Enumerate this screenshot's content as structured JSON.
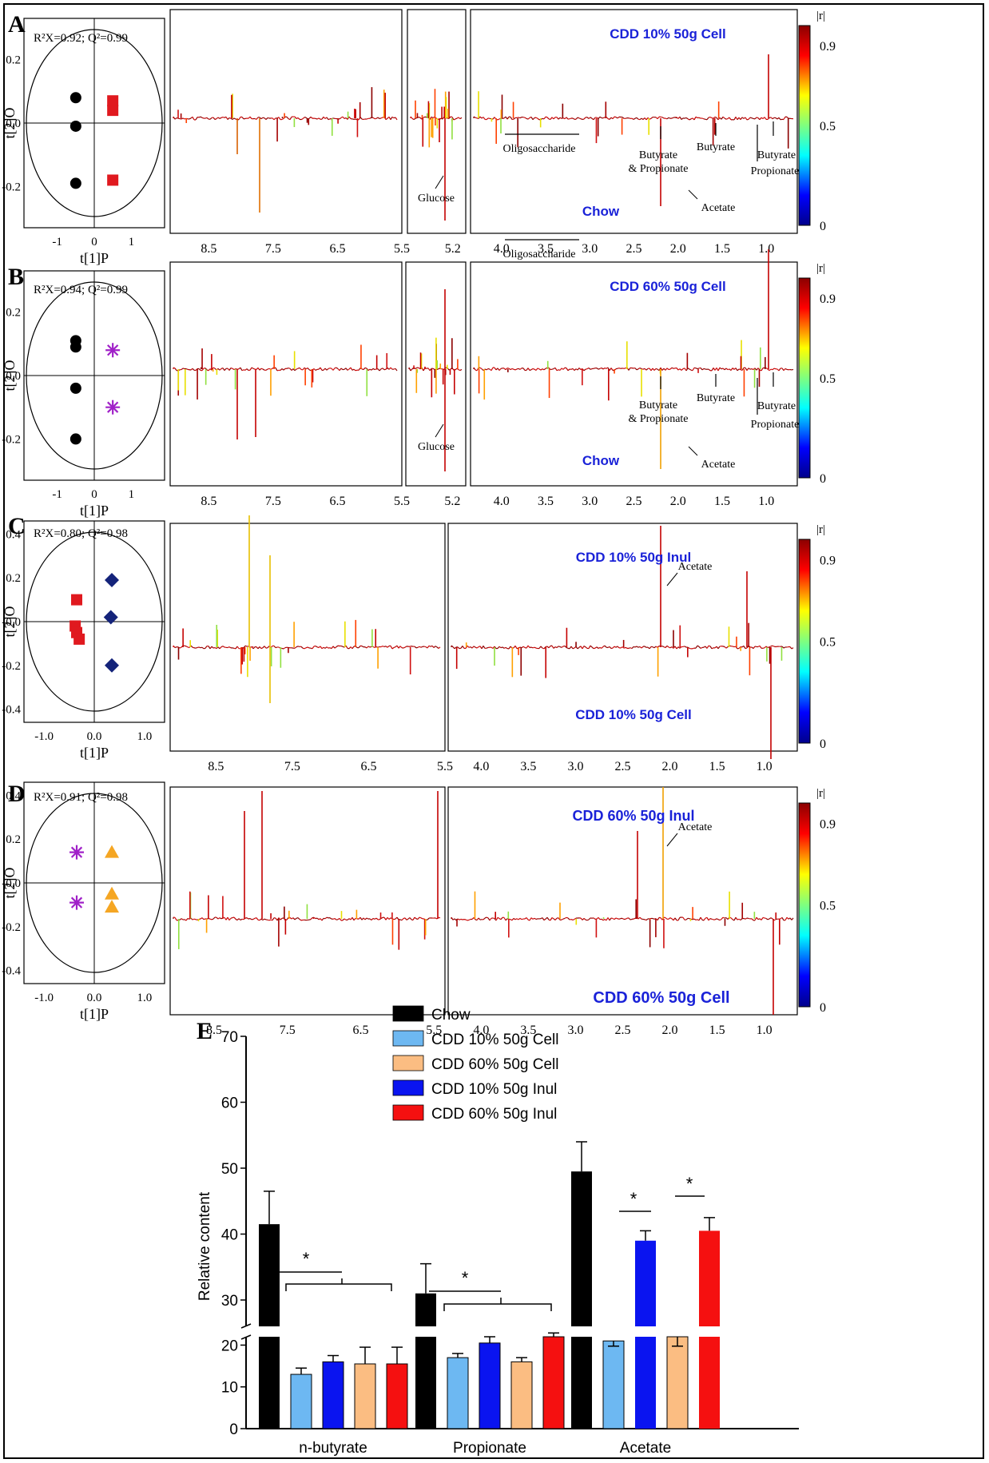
{
  "panels": [
    {
      "letter": "A",
      "stats": "R²X=0.92; Q²=0.99",
      "score_plot": {
        "ylabel": "t[2]O",
        "xlabel": "t[1]P",
        "xticks": [
          "-1",
          "0",
          "1"
        ],
        "yticks": [
          "0.2",
          "0.0",
          "-0.2"
        ],
        "groups": [
          {
            "shape": "circle",
            "color": "#000000",
            "points": [
              [
                -0.5,
                0.08
              ],
              [
                -0.5,
                -0.01
              ],
              [
                -0.5,
                -0.19
              ]
            ]
          },
          {
            "shape": "square",
            "color": "#e0191f",
            "points": [
              [
                0.5,
                0.07
              ],
              [
                0.5,
                0.04
              ],
              [
                0.5,
                -0.18
              ]
            ]
          }
        ]
      },
      "top_label": "CDD 10% 50g Cell",
      "bottom_label": "Chow",
      "xticks": [
        "8.5",
        "7.5",
        "6.5",
        "5.5",
        "5.2",
        "4.0",
        "3.5",
        "3.0",
        "2.5",
        "2.0",
        "1.5",
        "1.0"
      ],
      "annotations": [
        "Oligosaccharide",
        "Glucose",
        "Butyrate\n& Propionate",
        "Acetate",
        "Butyrate",
        "Propionate",
        "Butyrate"
      ]
    },
    {
      "letter": "B",
      "stats": "R²X=0.94; Q²=0.99",
      "score_plot": {
        "ylabel": "t[2]O",
        "xlabel": "t[1]P",
        "xticks": [
          "-1",
          "0",
          "1"
        ],
        "yticks": [
          "0.2",
          "0.0",
          "-0.2"
        ],
        "groups": [
          {
            "shape": "circle",
            "color": "#000000",
            "points": [
              [
                -0.5,
                0.11
              ],
              [
                -0.5,
                0.09
              ],
              [
                -0.5,
                -0.04
              ],
              [
                -0.5,
                -0.2
              ]
            ]
          },
          {
            "shape": "star",
            "color": "#a020c8",
            "points": [
              [
                0.5,
                0.08
              ],
              [
                0.5,
                -0.1
              ]
            ]
          }
        ]
      },
      "top_label": "CDD 60% 50g Cell",
      "bottom_label": "Chow",
      "xticks": [
        "8.5",
        "7.5",
        "6.5",
        "5.5",
        "5.2",
        "4.0",
        "3.5",
        "3.0",
        "2.5",
        "2.0",
        "1.5",
        "1.0"
      ],
      "annotations": [
        "Oligosaccharide",
        "Glucose",
        "Butyrate\n& Propionate",
        "Acetate",
        "Butyrate",
        "Propionate",
        "Butyrate"
      ]
    },
    {
      "letter": "C",
      "stats": "R²X=0.80; Q²=0.98",
      "score_plot": {
        "ylabel": "t[2]O",
        "xlabel": "t[1]P",
        "xticks": [
          "-1.0",
          "0.0",
          "1.0"
        ],
        "yticks": [
          "0.4",
          "0.2",
          "-0.0",
          "-0.2",
          "-0.4"
        ],
        "groups": [
          {
            "shape": "square",
            "color": "#e0191f",
            "points": [
              [
                -0.35,
                0.1
              ],
              [
                -0.38,
                -0.02
              ],
              [
                -0.35,
                -0.05
              ],
              [
                -0.3,
                -0.08
              ]
            ]
          },
          {
            "shape": "diamond",
            "color": "#14237a",
            "points": [
              [
                0.35,
                0.19
              ],
              [
                0.33,
                0.02
              ],
              [
                0.35,
                -0.2
              ]
            ]
          }
        ]
      },
      "top_label": "CDD 10% 50g Inul",
      "bottom_label": "CDD 10% 50g Cell",
      "xticks": [
        "8.5",
        "7.5",
        "6.5",
        "5.5",
        "4.0",
        "3.5",
        "3.0",
        "2.5",
        "2.0",
        "1.5",
        "1.0"
      ],
      "annotations": [
        "Acetate"
      ]
    },
    {
      "letter": "D",
      "stats": "R²X=0.91; Q²=0.98",
      "score_plot": {
        "ylabel": "t[2]O",
        "xlabel": "t[1]P",
        "xticks": [
          "-1.0",
          "0.0",
          "1.0"
        ],
        "yticks": [
          "0.4",
          "0.2",
          "-0.0",
          "-0.2",
          "-0.4"
        ],
        "groups": [
          {
            "shape": "star",
            "color": "#a020c8",
            "points": [
              [
                -0.35,
                0.14
              ],
              [
                -0.35,
                -0.09
              ]
            ]
          },
          {
            "shape": "triangle",
            "color": "#f5a623",
            "points": [
              [
                0.35,
                0.14
              ],
              [
                0.35,
                -0.05
              ],
              [
                0.35,
                -0.11
              ]
            ]
          }
        ]
      },
      "top_label": "CDD 60% 50g Inul",
      "bottom_label": "CDD 60% 50g Cell",
      "xticks": [
        "8.5",
        "7.5",
        "6.5",
        "5.5",
        "4.0",
        "3.5",
        "3.0",
        "2.5",
        "2.0",
        "1.5",
        "1.0"
      ],
      "annotations": [
        "Acetate"
      ]
    }
  ],
  "colorbar": {
    "title": "|r|",
    "ticks": [
      "0.9",
      "0.5",
      "0"
    ]
  },
  "chart_data": {
    "type": "bar",
    "panel_letter": "E",
    "ylabel": "Relative content",
    "yticks_upper": [
      "30",
      "40",
      "50",
      "60",
      "70"
    ],
    "yticks_lower": [
      "0",
      "10",
      "20"
    ],
    "ylim": [
      0,
      70
    ],
    "axis_break": [
      22,
      26
    ],
    "categories": [
      "n-butyrate",
      "Propionate",
      "Acetate"
    ],
    "series": [
      {
        "name": "Chow",
        "color": "#000000",
        "values": [
          41.5,
          31,
          49.5
        ],
        "errors": [
          5,
          4.5,
          4.5
        ]
      },
      {
        "name": "CDD 10% 50g Cell",
        "color": "#6db8f2",
        "values": [
          13,
          17,
          21
        ],
        "errors": [
          1.5,
          1,
          2
        ]
      },
      {
        "name": "CDD 10% 50g Inul",
        "color": "#0a14f0",
        "values": [
          16,
          20.5,
          39
        ],
        "errors": [
          1.5,
          1.5,
          1.5
        ]
      },
      {
        "name": "CDD 60% 50g Cell",
        "color": "#fbbd82",
        "values": [
          15.5,
          16,
          22
        ],
        "errors": [
          4,
          1,
          1
        ]
      },
      {
        "name": "CDD 60% 50g Inul",
        "color": "#f51010",
        "values": [
          15.5,
          22,
          40.5
        ],
        "errors": [
          4,
          3,
          2
        ]
      }
    ],
    "legend_order": [
      "Chow",
      "CDD 10% 50g Cell",
      "CDD 60% 50g Cell",
      "CDD 10% 50g Inul",
      "CDD 60% 50g Inul"
    ],
    "significance": [
      "*",
      "*",
      "*",
      "*"
    ]
  }
}
